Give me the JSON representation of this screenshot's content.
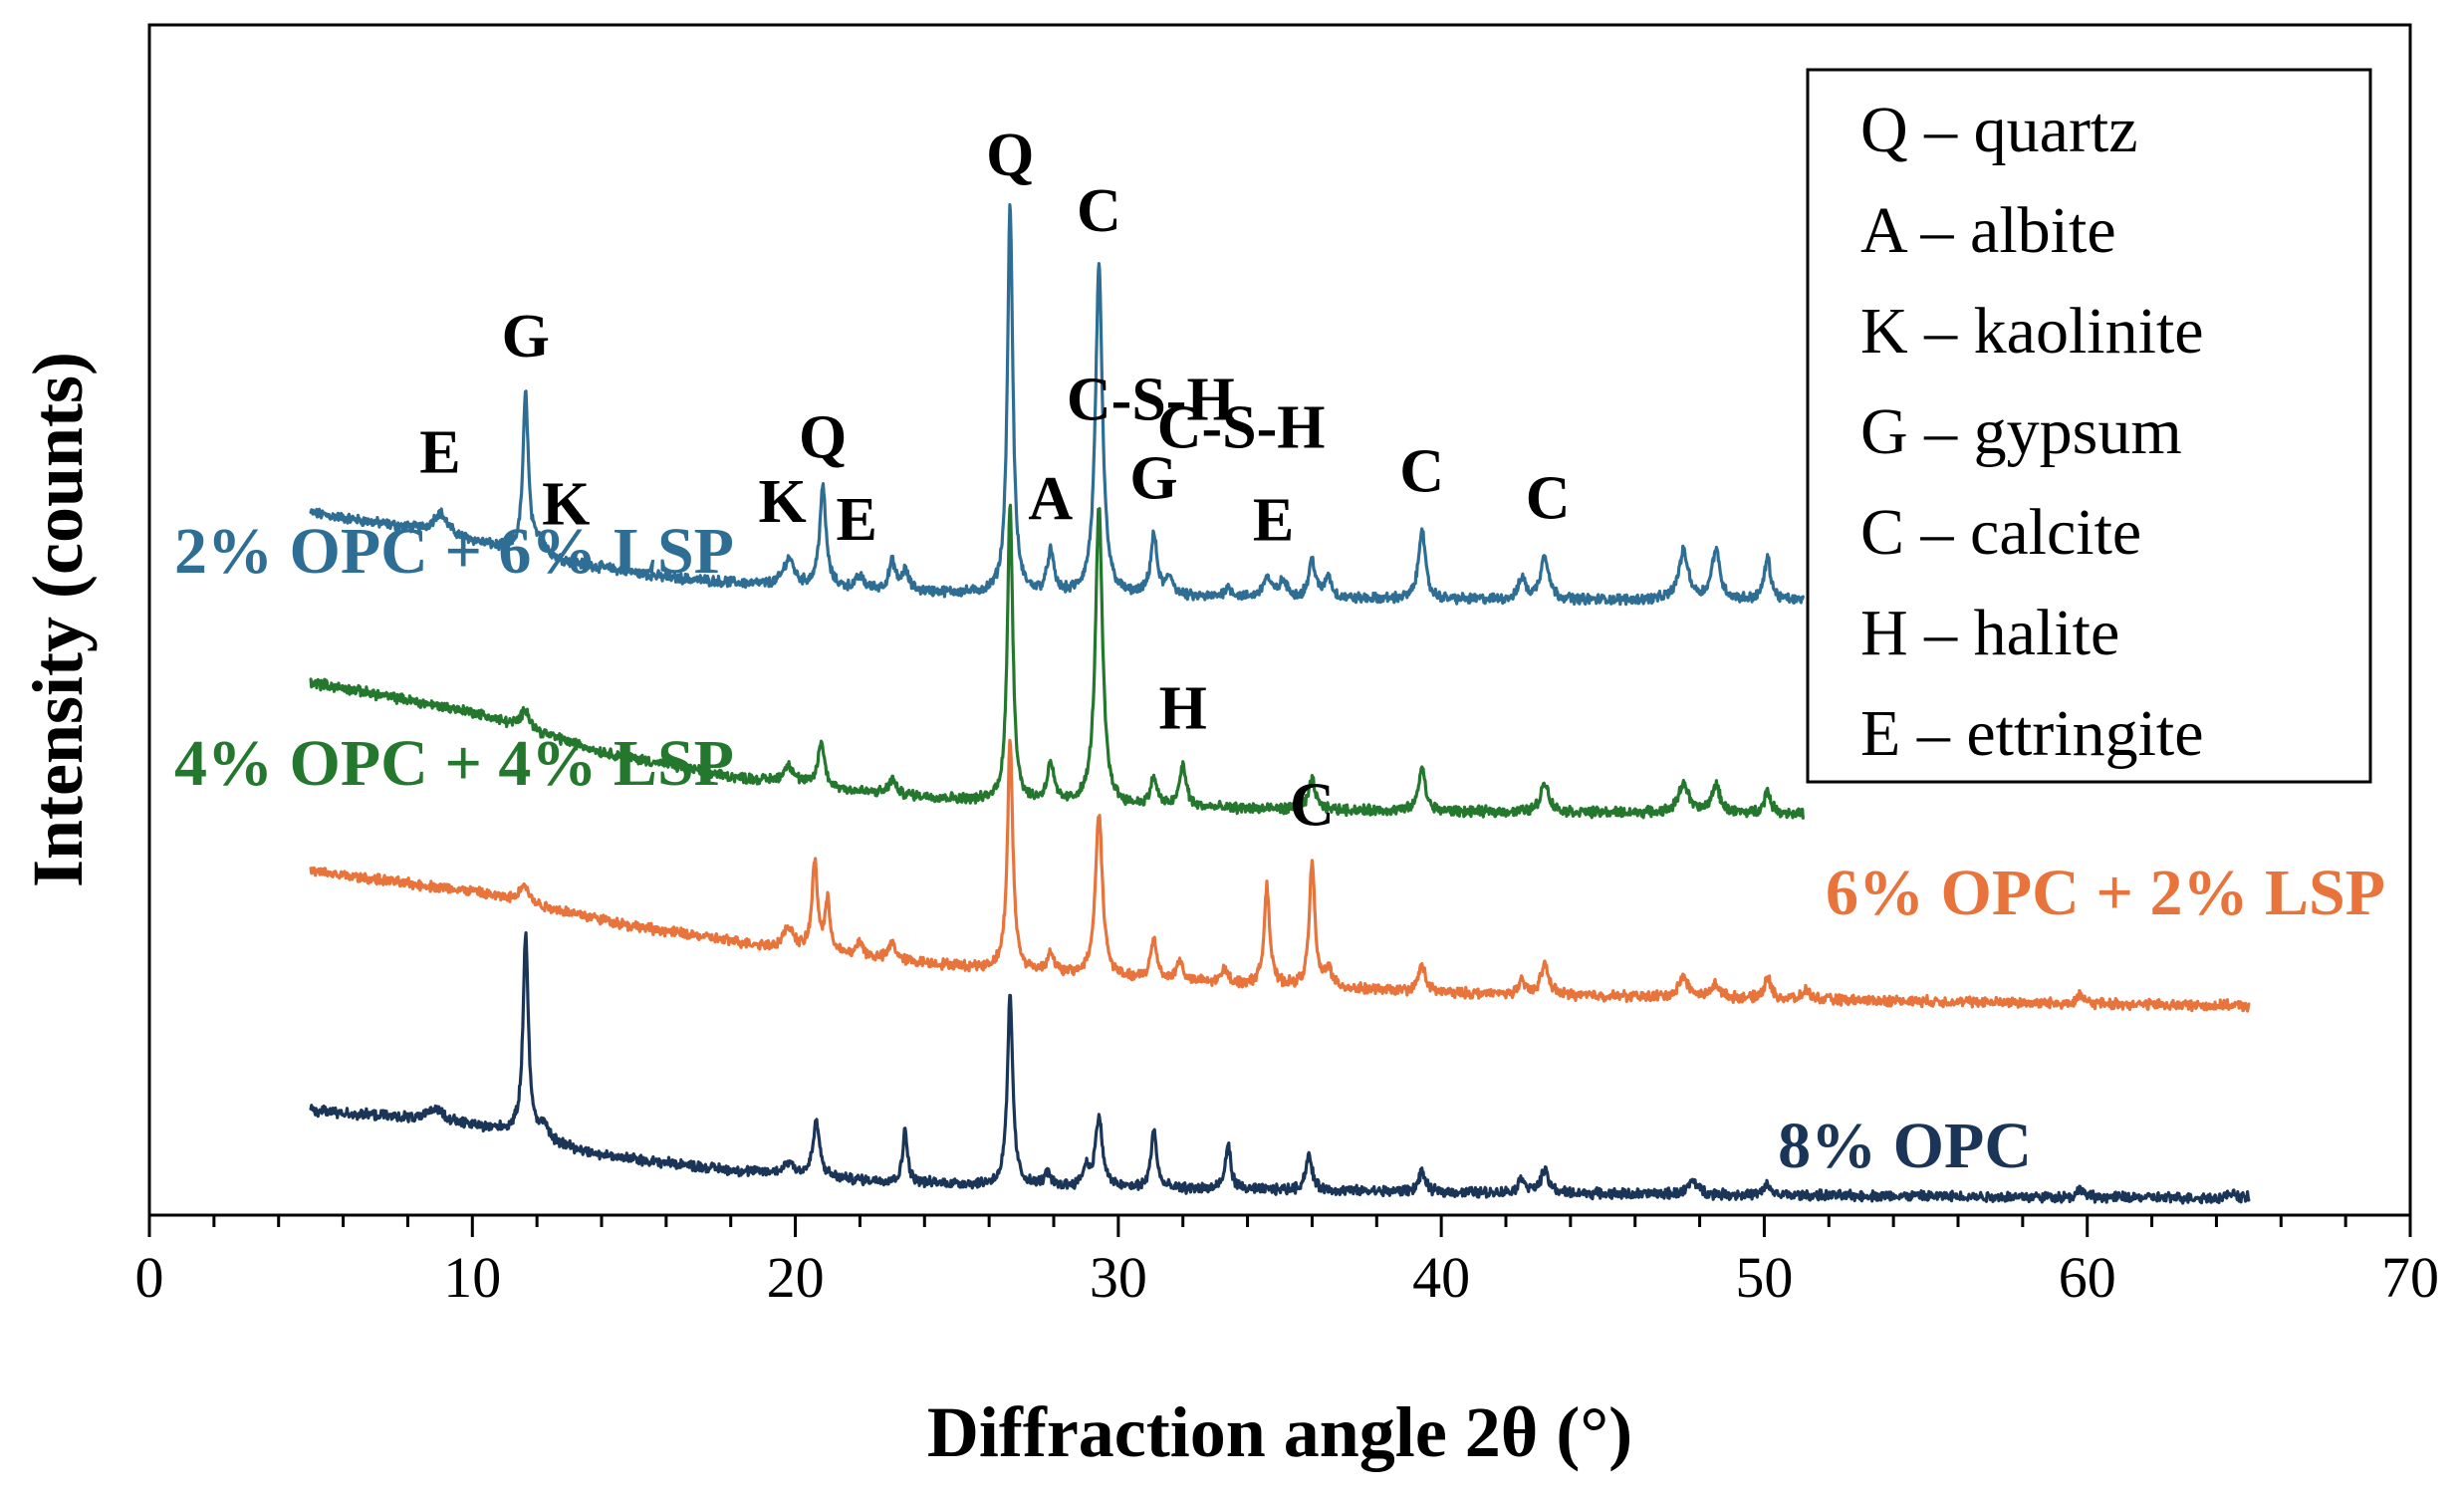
{
  "chart_data": {
    "type": "line",
    "title": "",
    "xlabel": "Diffraction angle 2θ (°)",
    "ylabel": "Intensity (counts)",
    "xlim": [
      0,
      70
    ],
    "x_ticks": [
      "0",
      "10",
      "20",
      "30",
      "40",
      "50",
      "60",
      "70"
    ],
    "y_ticks": [],
    "grid": false,
    "legend": {
      "placement": "top-right",
      "entries": [
        "Q – quartz",
        "A – albite",
        "K – kaolinite",
        "G – gypsum",
        "C – calcite",
        "H – halite",
        "E – ettringite"
      ]
    },
    "series": [
      {
        "name": "2% OPC + 6% LSP",
        "color": "#2e6e94",
        "baseline_offset": 600,
        "x_range": [
          5,
          51.2
        ],
        "background": [
          [
            5,
            90
          ],
          [
            9,
            70
          ],
          [
            12,
            45
          ],
          [
            16,
            25
          ],
          [
            20,
            15
          ],
          [
            26,
            8
          ],
          [
            30,
            5
          ],
          [
            40,
            3
          ],
          [
            51.2,
            2
          ]
        ],
        "peaks": [
          [
            9.0,
            20,
            0.25
          ],
          [
            11.65,
            160,
            0.1
          ],
          [
            12.1,
            18,
            0.2
          ],
          [
            19.8,
            28,
            0.2
          ],
          [
            20.85,
            100,
            0.12
          ],
          [
            22.0,
            12,
            0.15
          ],
          [
            23.0,
            28,
            0.12
          ],
          [
            23.4,
            20,
            0.12
          ],
          [
            26.65,
            390,
            0.1
          ],
          [
            27.9,
            42,
            0.12
          ],
          [
            29.4,
            330,
            0.13
          ],
          [
            31.1,
            60,
            0.12
          ],
          [
            31.6,
            18,
            0.15
          ],
          [
            33.4,
            10,
            0.15
          ],
          [
            34.6,
            20,
            0.15
          ],
          [
            35.1,
            16,
            0.15
          ],
          [
            36.0,
            38,
            0.12
          ],
          [
            36.5,
            22,
            0.12
          ],
          [
            39.4,
            72,
            0.12
          ],
          [
            42.5,
            22,
            0.12
          ],
          [
            43.2,
            45,
            0.15
          ],
          [
            47.5,
            48,
            0.18
          ],
          [
            48.5,
            50,
            0.15
          ],
          [
            50.1,
            42,
            0.12
          ]
        ],
        "peak_labels": [
          {
            "text": "E",
            "x": 9.0,
            "rise": 40
          },
          {
            "text": "G",
            "x": 11.65,
            "rise": 36
          },
          {
            "text": "K",
            "x": 12.9,
            "rise": 30
          },
          {
            "text": "K",
            "x": 19.6,
            "rise": 36
          },
          {
            "text": "Q",
            "x": 20.85,
            "rise": 30
          },
          {
            "text": "E",
            "x": 21.9,
            "rise": 36
          },
          {
            "text": "Q",
            "x": 26.65,
            "rise": 30
          },
          {
            "text": "C-S-H",
            "x": 31.0,
            "rise": 115
          },
          {
            "text": "C",
            "x": 29.4,
            "rise": 36
          },
          {
            "text": "A",
            "x": 27.9,
            "rise": 30
          },
          {
            "text": "C-S-H",
            "x": 33.8,
            "rise": 140
          },
          {
            "text": "G",
            "x": 31.1,
            "rise": 36
          },
          {
            "text": "E",
            "x": 34.8,
            "rise": 36
          },
          {
            "text": "C",
            "x": 39.4,
            "rise": 36
          },
          {
            "text": "C",
            "x": 43.3,
            "rise": 36
          }
        ]
      },
      {
        "name": "4% OPC + 4% LSP",
        "color": "#24782e",
        "baseline_offset": 350,
        "x_range": [
          5,
          51.2
        ],
        "background": [
          [
            5,
            170
          ],
          [
            10,
            140
          ],
          [
            14,
            100
          ],
          [
            18,
            75
          ],
          [
            22,
            60
          ],
          [
            26,
            50
          ],
          [
            30,
            45
          ],
          [
            40,
            40
          ],
          [
            51.2,
            38
          ]
        ],
        "peaks": [
          [
            11.65,
            20,
            0.15
          ],
          [
            19.8,
            18,
            0.2
          ],
          [
            20.8,
            45,
            0.12
          ],
          [
            23.0,
            15,
            0.12
          ],
          [
            26.65,
            300,
            0.1
          ],
          [
            27.9,
            40,
            0.12
          ],
          [
            29.4,
            300,
            0.13
          ],
          [
            31.1,
            28,
            0.12
          ],
          [
            32.0,
            42,
            0.12
          ],
          [
            36.0,
            30,
            0.12
          ],
          [
            39.4,
            45,
            0.12
          ],
          [
            43.2,
            30,
            0.15
          ],
          [
            47.5,
            30,
            0.18
          ],
          [
            48.5,
            28,
            0.15
          ],
          [
            50.1,
            22,
            0.12
          ]
        ],
        "peak_labels": [
          {
            "text": "H",
            "x": 32.0,
            "rise": 36
          }
        ]
      },
      {
        "name": "6% OPC + 2% LSP",
        "color": "#e8733b",
        "baseline_offset": 150,
        "x_range": [
          5,
          65
        ],
        "background": [
          [
            5,
            180
          ],
          [
            10,
            160
          ],
          [
            15,
            125
          ],
          [
            20,
            100
          ],
          [
            25,
            85
          ],
          [
            30,
            72
          ],
          [
            40,
            58
          ],
          [
            50,
            52
          ],
          [
            65,
            45
          ]
        ],
        "peaks": [
          [
            11.6,
            20,
            0.15
          ],
          [
            19.8,
            22,
            0.2
          ],
          [
            20.6,
            90,
            0.1
          ],
          [
            21.0,
            50,
            0.1
          ],
          [
            22.0,
            15,
            0.12
          ],
          [
            23.0,
            18,
            0.12
          ],
          [
            26.65,
            230,
            0.1
          ],
          [
            27.9,
            20,
            0.12
          ],
          [
            29.4,
            165,
            0.13
          ],
          [
            31.1,
            40,
            0.12
          ],
          [
            31.9,
            20,
            0.12
          ],
          [
            33.3,
            14,
            0.12
          ],
          [
            34.6,
            100,
            0.1
          ],
          [
            36.0,
            125,
            0.1
          ],
          [
            36.5,
            20,
            0.12
          ],
          [
            39.4,
            28,
            0.12
          ],
          [
            42.5,
            12,
            0.12
          ],
          [
            43.2,
            30,
            0.15
          ],
          [
            47.5,
            20,
            0.18
          ],
          [
            48.5,
            14,
            0.15
          ],
          [
            50.1,
            22,
            0.12
          ],
          [
            51.3,
            10,
            0.12
          ],
          [
            59.8,
            8,
            0.12
          ]
        ],
        "peak_labels": [
          {
            "text": "C",
            "x": 36.0,
            "rise": 36
          }
        ]
      },
      {
        "name": "8% OPC",
        "color": "#1a3558",
        "baseline_offset": 0,
        "x_range": [
          5,
          65
        ],
        "background": [
          [
            5,
            90
          ],
          [
            9,
            80
          ],
          [
            11,
            70
          ],
          [
            14,
            45
          ],
          [
            18,
            30
          ],
          [
            22,
            20
          ],
          [
            26,
            15
          ],
          [
            30,
            12
          ],
          [
            40,
            8
          ],
          [
            50,
            5
          ],
          [
            65,
            2
          ]
        ],
        "peaks": [
          [
            8.9,
            12,
            0.25
          ],
          [
            11.65,
            200,
            0.1
          ],
          [
            12.2,
            15,
            0.15
          ],
          [
            19.8,
            12,
            0.2
          ],
          [
            20.65,
            55,
            0.12
          ],
          [
            23.4,
            55,
            0.08
          ],
          [
            26.65,
            190,
            0.1
          ],
          [
            27.8,
            12,
            0.12
          ],
          [
            29.0,
            18,
            0.12
          ],
          [
            29.4,
            70,
            0.13
          ],
          [
            31.1,
            60,
            0.1
          ],
          [
            33.4,
            45,
            0.1
          ],
          [
            35.9,
            35,
            0.12
          ],
          [
            39.4,
            20,
            0.12
          ],
          [
            42.5,
            15,
            0.12
          ],
          [
            43.2,
            22,
            0.15
          ],
          [
            47.8,
            14,
            0.18
          ],
          [
            50.1,
            10,
            0.12
          ],
          [
            59.8,
            8,
            0.12
          ],
          [
            64.5,
            6,
            0.12
          ]
        ],
        "peak_labels": []
      }
    ]
  }
}
